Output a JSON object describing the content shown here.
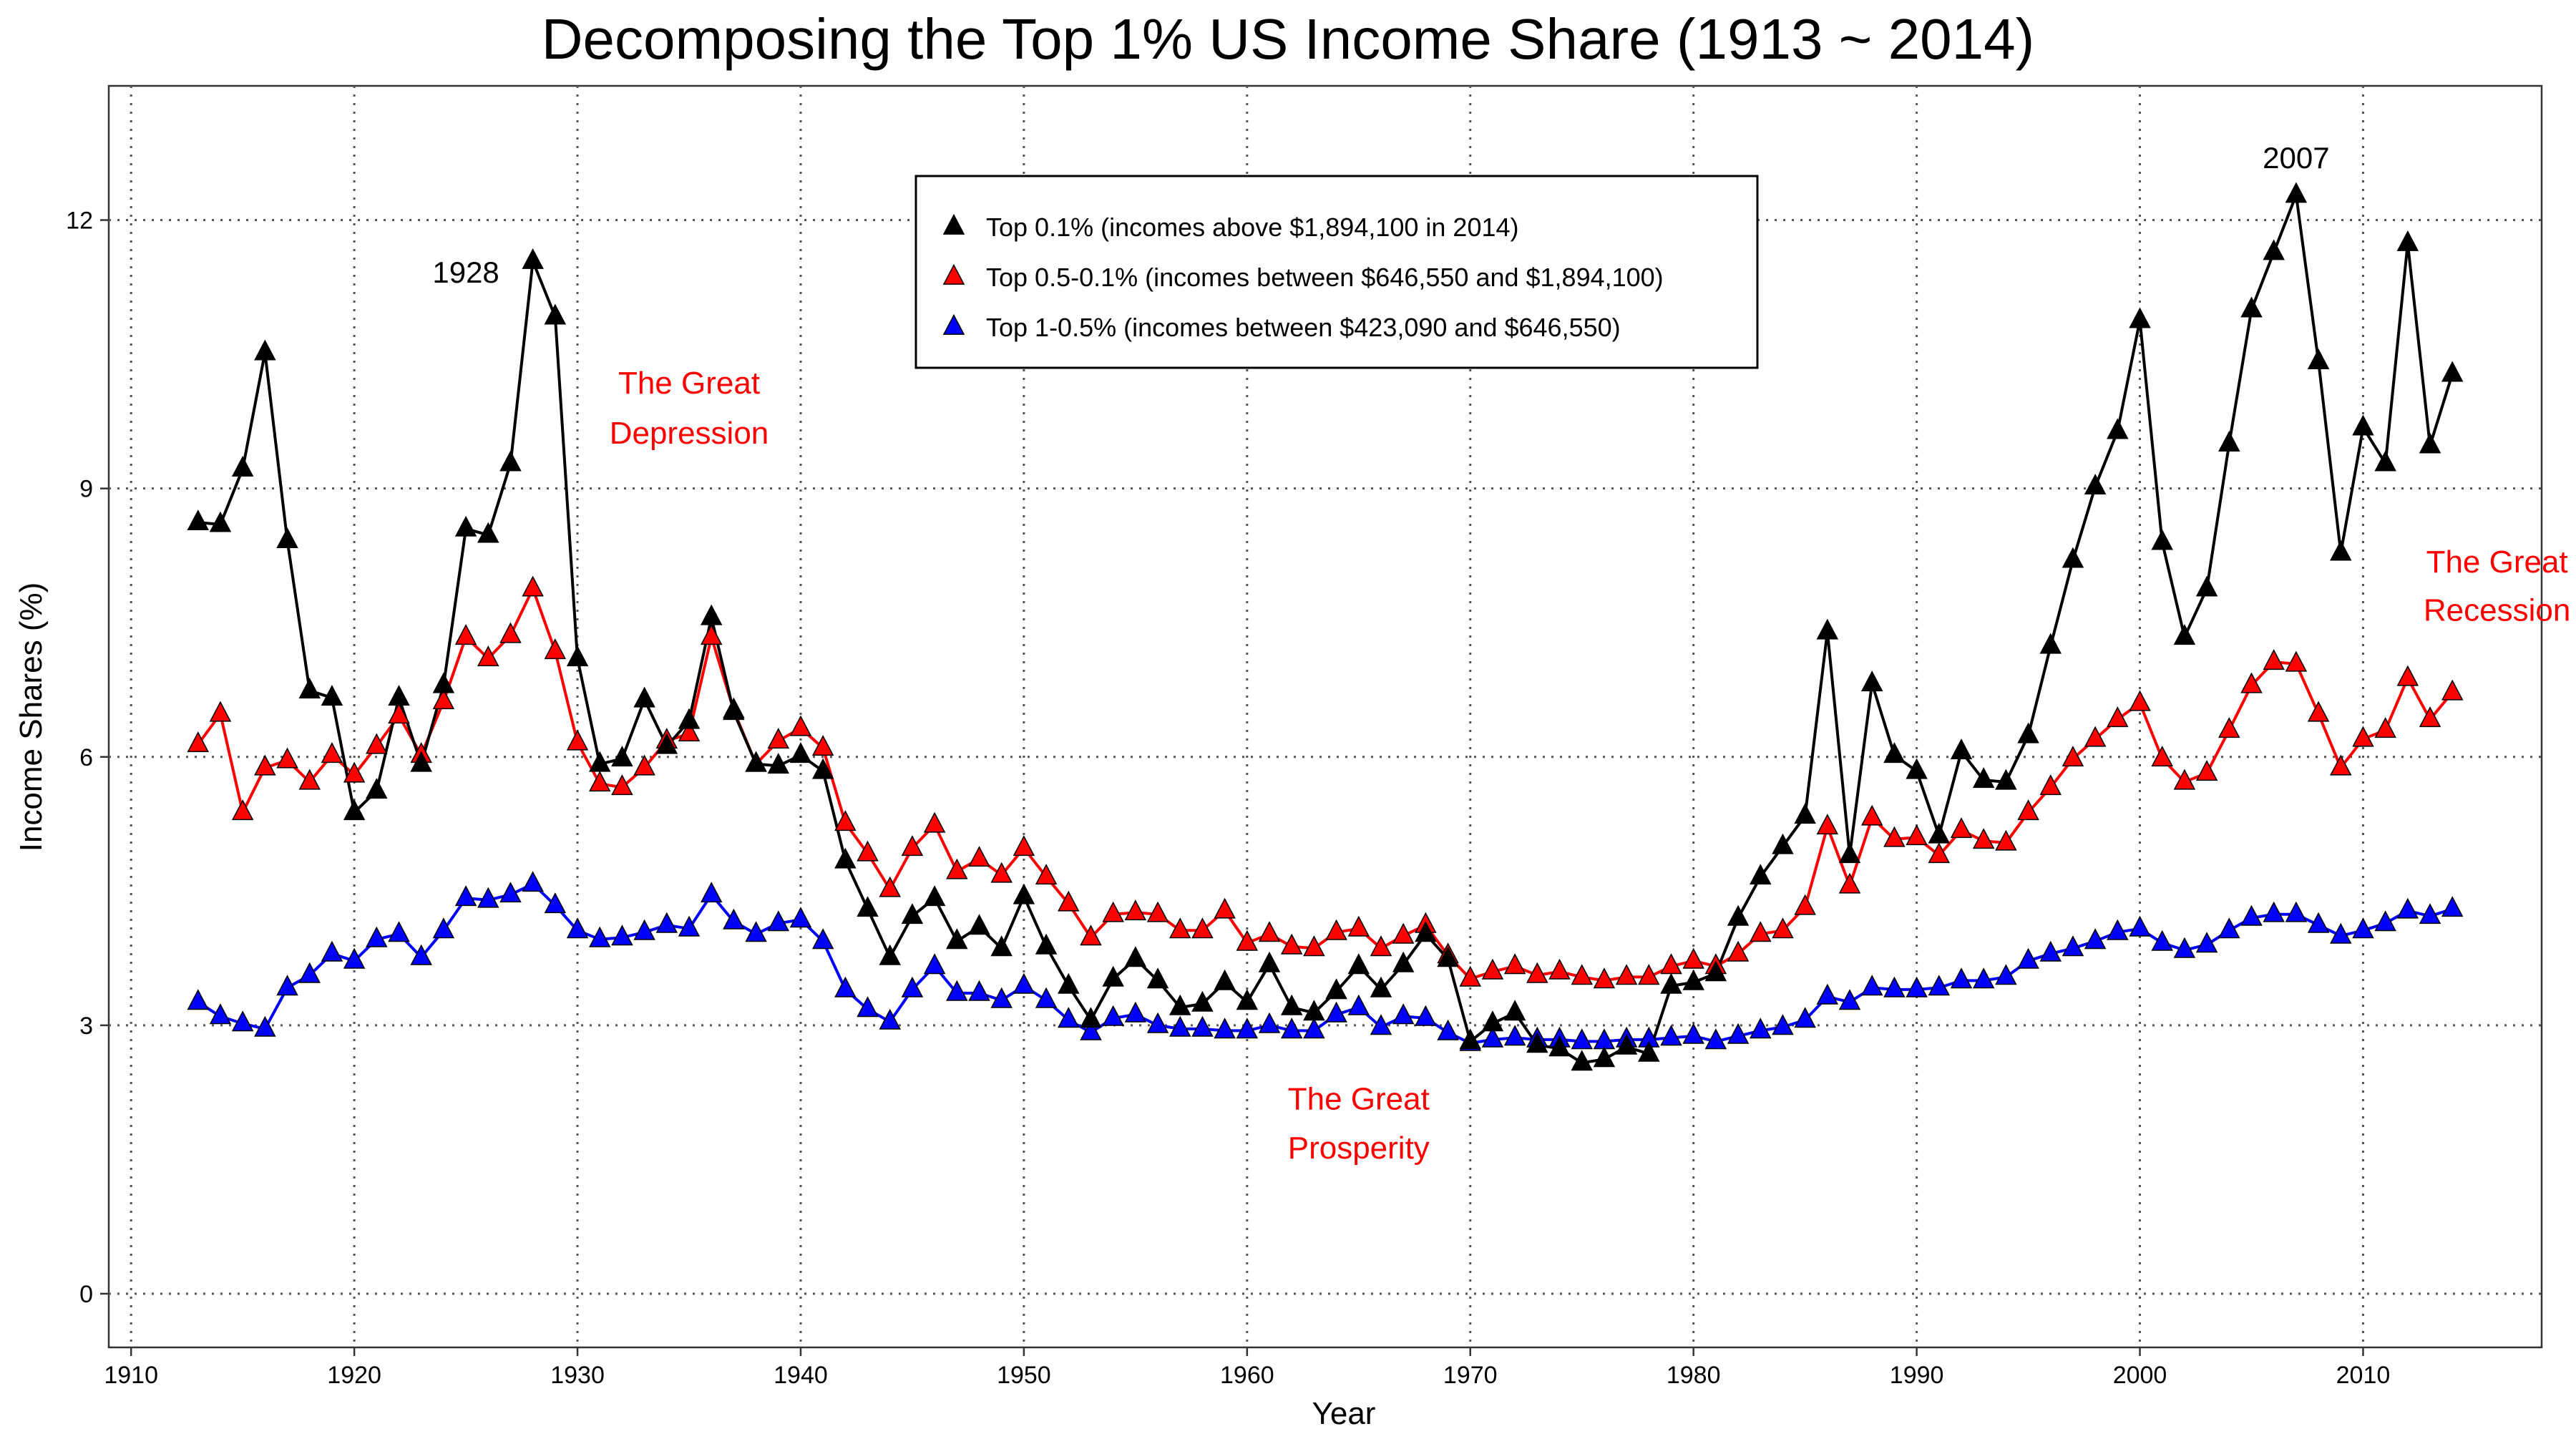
{
  "chart_data": {
    "type": "line",
    "title": "Decomposing the Top 1% US Income Share (1913 ~ 2014)",
    "xlabel": "Year",
    "ylabel": "Income Shares (%)",
    "xlim": [
      1909,
      2018
    ],
    "ylim": [
      -0.6,
      13.5
    ],
    "x_ticks": [
      1910,
      1920,
      1930,
      1940,
      1950,
      1960,
      1970,
      1980,
      1990,
      2000,
      2010
    ],
    "y_ticks": [
      0,
      3,
      6,
      9,
      12
    ],
    "grid": true,
    "legend_position": "top-center",
    "x": [
      1913,
      1914,
      1915,
      1916,
      1917,
      1918,
      1919,
      1920,
      1921,
      1922,
      1923,
      1924,
      1925,
      1926,
      1927,
      1928,
      1929,
      1930,
      1931,
      1932,
      1933,
      1934,
      1935,
      1936,
      1937,
      1938,
      1939,
      1940,
      1941,
      1942,
      1943,
      1944,
      1945,
      1946,
      1947,
      1948,
      1949,
      1950,
      1951,
      1952,
      1953,
      1954,
      1955,
      1956,
      1957,
      1958,
      1959,
      1960,
      1961,
      1962,
      1963,
      1964,
      1965,
      1966,
      1967,
      1968,
      1969,
      1970,
      1971,
      1972,
      1973,
      1974,
      1975,
      1976,
      1977,
      1978,
      1979,
      1980,
      1981,
      1982,
      1983,
      1984,
      1985,
      1986,
      1987,
      1988,
      1989,
      1990,
      1991,
      1992,
      1993,
      1994,
      1995,
      1996,
      1997,
      1998,
      1999,
      2000,
      2001,
      2002,
      2003,
      2004,
      2005,
      2006,
      2007,
      2008,
      2009,
      2010,
      2011,
      2012,
      2013,
      2014
    ],
    "series": [
      {
        "name": "Top 0.1% (incomes above $1,894,100 in 2014)",
        "color": "#000000",
        "values": [
          8.62,
          8.6,
          9.22,
          10.52,
          8.42,
          6.74,
          6.66,
          5.38,
          5.62,
          6.66,
          5.92,
          6.8,
          8.55,
          8.48,
          9.28,
          11.54,
          10.92,
          7.1,
          5.92,
          5.98,
          6.64,
          6.12,
          6.4,
          7.56,
          6.5,
          5.92,
          5.9,
          6.02,
          5.84,
          4.84,
          4.3,
          3.76,
          4.22,
          4.42,
          3.94,
          4.1,
          3.86,
          4.44,
          3.88,
          3.44,
          3.06,
          3.52,
          3.74,
          3.5,
          3.2,
          3.24,
          3.48,
          3.26,
          3.68,
          3.2,
          3.14,
          3.38,
          3.66,
          3.4,
          3.68,
          4.02,
          3.74,
          2.82,
          3.02,
          3.14,
          2.78,
          2.74,
          2.58,
          2.62,
          2.76,
          2.68,
          3.44,
          3.48,
          3.58,
          4.2,
          4.66,
          5.0,
          5.34,
          7.4,
          4.9,
          6.82,
          6.02,
          5.84,
          5.12,
          6.06,
          5.74,
          5.72,
          6.24,
          7.24,
          8.2,
          9.02,
          9.64,
          10.88,
          8.4,
          7.34,
          7.88,
          9.5,
          11.0,
          11.64,
          12.28,
          10.42,
          8.28,
          9.68,
          9.28,
          11.74,
          9.48,
          10.28
        ]
      },
      {
        "name": "Top 0.5-0.1% (incomes between $646,550 and $1,894,100)",
        "color": "#ff0000",
        "values": [
          6.14,
          6.48,
          5.38,
          5.88,
          5.96,
          5.72,
          6.02,
          5.8,
          6.12,
          6.46,
          6.02,
          6.62,
          7.34,
          7.1,
          7.36,
          7.88,
          7.18,
          6.16,
          5.7,
          5.66,
          5.88,
          6.18,
          6.26,
          7.34,
          6.52,
          5.92,
          6.18,
          6.32,
          6.1,
          5.26,
          4.92,
          4.52,
          4.98,
          5.24,
          4.72,
          4.86,
          4.68,
          4.98,
          4.66,
          4.36,
          3.98,
          4.24,
          4.26,
          4.24,
          4.06,
          4.06,
          4.28,
          3.92,
          4.02,
          3.88,
          3.86,
          4.04,
          4.08,
          3.86,
          4.0,
          4.12,
          3.78,
          3.52,
          3.6,
          3.66,
          3.56,
          3.6,
          3.54,
          3.5,
          3.54,
          3.54,
          3.66,
          3.72,
          3.66,
          3.8,
          4.02,
          4.06,
          4.32,
          5.22,
          4.56,
          5.32,
          5.08,
          5.1,
          4.9,
          5.18,
          5.06,
          5.04,
          5.38,
          5.66,
          5.98,
          6.2,
          6.42,
          6.6,
          5.98,
          5.72,
          5.82,
          6.3,
          6.8,
          7.06,
          7.04,
          6.48,
          5.88,
          6.2,
          6.3,
          6.88,
          6.42,
          6.72
        ]
      },
      {
        "name": "Top 1-0.5% (incomes between $423,090 and $646,550)",
        "color": "#0000ff",
        "values": [
          3.26,
          3.1,
          3.02,
          2.96,
          3.42,
          3.56,
          3.8,
          3.72,
          3.96,
          4.02,
          3.76,
          4.06,
          4.42,
          4.4,
          4.46,
          4.58,
          4.34,
          4.06,
          3.96,
          3.98,
          4.04,
          4.12,
          4.08,
          4.46,
          4.16,
          4.02,
          4.14,
          4.18,
          3.94,
          3.4,
          3.18,
          3.04,
          3.4,
          3.66,
          3.36,
          3.36,
          3.28,
          3.44,
          3.28,
          3.06,
          2.92,
          3.08,
          3.12,
          3.0,
          2.96,
          2.96,
          2.94,
          2.94,
          3.0,
          2.94,
          2.94,
          3.12,
          3.2,
          2.98,
          3.1,
          3.08,
          2.92,
          2.8,
          2.84,
          2.86,
          2.84,
          2.84,
          2.82,
          2.82,
          2.84,
          2.84,
          2.86,
          2.88,
          2.82,
          2.88,
          2.94,
          2.98,
          3.06,
          3.32,
          3.26,
          3.42,
          3.4,
          3.4,
          3.42,
          3.5,
          3.5,
          3.54,
          3.72,
          3.8,
          3.86,
          3.94,
          4.04,
          4.08,
          3.92,
          3.84,
          3.9,
          4.06,
          4.2,
          4.24,
          4.24,
          4.12,
          4.0,
          4.06,
          4.14,
          4.28,
          4.22,
          4.3
        ]
      }
    ],
    "annotations": [
      {
        "text": "1928",
        "x": 1925,
        "y": 11.42,
        "color": "#000000"
      },
      {
        "text": "2007",
        "x": 2007,
        "y": 12.7,
        "color": "#000000"
      },
      {
        "text": "The Great",
        "x": 1935,
        "y": 10.18,
        "color": "#ff0000"
      },
      {
        "text": "Depression",
        "x": 1935,
        "y": 9.62,
        "color": "#ff0000"
      },
      {
        "text": "The Great",
        "x": 2016,
        "y": 8.18,
        "color": "#ff0000"
      },
      {
        "text": "Recession",
        "x": 2016,
        "y": 7.64,
        "color": "#ff0000"
      },
      {
        "text": "The Great",
        "x": 1965,
        "y": 2.18,
        "color": "#ff0000"
      },
      {
        "text": "Prosperity",
        "x": 1965,
        "y": 1.63,
        "color": "#ff0000"
      }
    ]
  }
}
